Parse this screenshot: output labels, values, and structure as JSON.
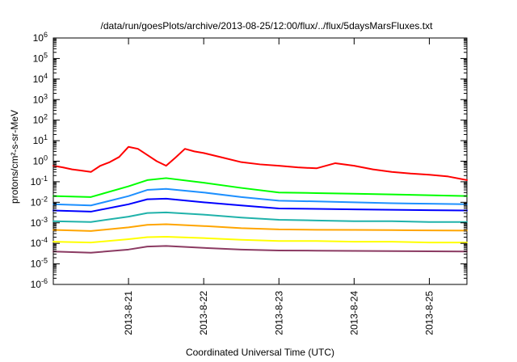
{
  "chart_data": {
    "type": "line",
    "title": "/data/run/goesPlots/archive/2013-08-25/12:00/flux/../flux/5daysMarsFluxes.txt",
    "xlabel": "Coordinated Universal Time (UTC)",
    "ylabel": "protons/cm²-s-sr-MeV",
    "y_scale": "log",
    "ylim": [
      1e-06,
      1000000.0
    ],
    "y_ticks": [
      {
        "value": 1e-06,
        "base": "10",
        "exp": "-6"
      },
      {
        "value": 1e-05,
        "base": "10",
        "exp": "-5"
      },
      {
        "value": 0.0001,
        "base": "10",
        "exp": "-4"
      },
      {
        "value": 0.001,
        "base": "10",
        "exp": "-3"
      },
      {
        "value": 0.01,
        "base": "10",
        "exp": "-2"
      },
      {
        "value": 0.1,
        "base": "10",
        "exp": "-1"
      },
      {
        "value": 1,
        "base": "10",
        "exp": "0"
      },
      {
        "value": 10,
        "base": "10",
        "exp": "1"
      },
      {
        "value": 100,
        "base": "10",
        "exp": "2"
      },
      {
        "value": 1000,
        "base": "10",
        "exp": "3"
      },
      {
        "value": 10000,
        "base": "10",
        "exp": "4"
      },
      {
        "value": 100000,
        "base": "10",
        "exp": "5"
      },
      {
        "value": 1000000,
        "base": "10",
        "exp": "6"
      }
    ],
    "x_range": [
      "2013-08-20T00:00:00Z",
      "2013-08-25T12:00:00Z"
    ],
    "x_ticks": [
      {
        "date": "2013-08-21T00:00:00Z",
        "label": "2013-8-21"
      },
      {
        "date": "2013-08-22T00:00:00Z",
        "label": "2013-8-22"
      },
      {
        "date": "2013-08-23T00:00:00Z",
        "label": "2013-8-23"
      },
      {
        "date": "2013-08-24T00:00:00Z",
        "label": "2013-8-24"
      },
      {
        "date": "2013-08-25T00:00:00Z",
        "label": "2013-8-25"
      }
    ],
    "series": [
      {
        "color": "#ff0000",
        "points": [
          [
            "2013-08-20T00:00:00Z",
            0.6
          ],
          [
            "2013-08-20T03:00:00Z",
            0.5
          ],
          [
            "2013-08-20T06:00:00Z",
            0.4
          ],
          [
            "2013-08-20T09:00:00Z",
            0.35
          ],
          [
            "2013-08-20T12:00:00Z",
            0.3
          ],
          [
            "2013-08-20T15:00:00Z",
            0.6
          ],
          [
            "2013-08-20T18:00:00Z",
            0.9
          ],
          [
            "2013-08-20T21:00:00Z",
            1.6
          ],
          [
            "2013-08-21T00:00:00Z",
            5.0
          ],
          [
            "2013-08-21T03:00:00Z",
            4.0
          ],
          [
            "2013-08-21T06:00:00Z",
            2.0
          ],
          [
            "2013-08-21T09:00:00Z",
            1.0
          ],
          [
            "2013-08-21T12:00:00Z",
            0.6
          ],
          [
            "2013-08-21T15:00:00Z",
            1.5
          ],
          [
            "2013-08-21T18:00:00Z",
            4.0
          ],
          [
            "2013-08-21T21:00:00Z",
            3.0
          ],
          [
            "2013-08-22T00:00:00Z",
            2.5
          ],
          [
            "2013-08-22T06:00:00Z",
            1.5
          ],
          [
            "2013-08-22T12:00:00Z",
            0.9
          ],
          [
            "2013-08-22T18:00:00Z",
            0.7
          ],
          [
            "2013-08-23T00:00:00Z",
            0.6
          ],
          [
            "2013-08-23T06:00:00Z",
            0.5
          ],
          [
            "2013-08-23T12:00:00Z",
            0.45
          ],
          [
            "2013-08-23T18:00:00Z",
            0.8
          ],
          [
            "2013-08-24T00:00:00Z",
            0.6
          ],
          [
            "2013-08-24T06:00:00Z",
            0.4
          ],
          [
            "2013-08-24T12:00:00Z",
            0.3
          ],
          [
            "2013-08-24T18:00:00Z",
            0.25
          ],
          [
            "2013-08-25T00:00:00Z",
            0.22
          ],
          [
            "2013-08-25T06:00:00Z",
            0.18
          ],
          [
            "2013-08-25T12:00:00Z",
            0.12
          ]
        ]
      },
      {
        "color": "#00ff00",
        "points": [
          [
            "2013-08-20T00:00:00Z",
            0.02
          ],
          [
            "2013-08-20T12:00:00Z",
            0.018
          ],
          [
            "2013-08-21T00:00:00Z",
            0.06
          ],
          [
            "2013-08-21T06:00:00Z",
            0.12
          ],
          [
            "2013-08-21T12:00:00Z",
            0.15
          ],
          [
            "2013-08-22T00:00:00Z",
            0.09
          ],
          [
            "2013-08-22T12:00:00Z",
            0.05
          ],
          [
            "2013-08-23T00:00:00Z",
            0.03
          ],
          [
            "2013-08-23T12:00:00Z",
            0.028
          ],
          [
            "2013-08-24T00:00:00Z",
            0.026
          ],
          [
            "2013-08-24T12:00:00Z",
            0.024
          ],
          [
            "2013-08-25T00:00:00Z",
            0.022
          ],
          [
            "2013-08-25T12:00:00Z",
            0.02
          ]
        ]
      },
      {
        "color": "#1e90ff",
        "points": [
          [
            "2013-08-20T00:00:00Z",
            0.008
          ],
          [
            "2013-08-20T12:00:00Z",
            0.007
          ],
          [
            "2013-08-21T00:00:00Z",
            0.02
          ],
          [
            "2013-08-21T06:00:00Z",
            0.04
          ],
          [
            "2013-08-21T12:00:00Z",
            0.045
          ],
          [
            "2013-08-22T00:00:00Z",
            0.03
          ],
          [
            "2013-08-22T12:00:00Z",
            0.018
          ],
          [
            "2013-08-23T00:00:00Z",
            0.012
          ],
          [
            "2013-08-23T12:00:00Z",
            0.011
          ],
          [
            "2013-08-24T00:00:00Z",
            0.01
          ],
          [
            "2013-08-24T12:00:00Z",
            0.009
          ],
          [
            "2013-08-25T00:00:00Z",
            0.0085
          ],
          [
            "2013-08-25T12:00:00Z",
            0.008
          ]
        ]
      },
      {
        "color": "#0000ff",
        "points": [
          [
            "2013-08-20T00:00:00Z",
            0.004
          ],
          [
            "2013-08-20T12:00:00Z",
            0.0035
          ],
          [
            "2013-08-21T00:00:00Z",
            0.008
          ],
          [
            "2013-08-21T06:00:00Z",
            0.014
          ],
          [
            "2013-08-21T12:00:00Z",
            0.015
          ],
          [
            "2013-08-22T00:00:00Z",
            0.01
          ],
          [
            "2013-08-22T12:00:00Z",
            0.007
          ],
          [
            "2013-08-23T00:00:00Z",
            0.005
          ],
          [
            "2013-08-23T12:00:00Z",
            0.0048
          ],
          [
            "2013-08-24T00:00:00Z",
            0.0045
          ],
          [
            "2013-08-24T12:00:00Z",
            0.0043
          ],
          [
            "2013-08-25T00:00:00Z",
            0.0041
          ],
          [
            "2013-08-25T12:00:00Z",
            0.004
          ]
        ]
      },
      {
        "color": "#20b2aa",
        "points": [
          [
            "2013-08-20T00:00:00Z",
            0.0012
          ],
          [
            "2013-08-20T12:00:00Z",
            0.0011
          ],
          [
            "2013-08-21T00:00:00Z",
            0.002
          ],
          [
            "2013-08-21T06:00:00Z",
            0.003
          ],
          [
            "2013-08-21T12:00:00Z",
            0.0032
          ],
          [
            "2013-08-22T00:00:00Z",
            0.0025
          ],
          [
            "2013-08-22T12:00:00Z",
            0.0018
          ],
          [
            "2013-08-23T00:00:00Z",
            0.0014
          ],
          [
            "2013-08-23T12:00:00Z",
            0.0013
          ],
          [
            "2013-08-24T00:00:00Z",
            0.0012
          ],
          [
            "2013-08-24T12:00:00Z",
            0.0012
          ],
          [
            "2013-08-25T00:00:00Z",
            0.0011
          ],
          [
            "2013-08-25T12:00:00Z",
            0.0011
          ]
        ]
      },
      {
        "color": "#ffa500",
        "points": [
          [
            "2013-08-20T00:00:00Z",
            0.00045
          ],
          [
            "2013-08-20T12:00:00Z",
            0.0004
          ],
          [
            "2013-08-21T00:00:00Z",
            0.0006
          ],
          [
            "2013-08-21T06:00:00Z",
            0.0008
          ],
          [
            "2013-08-21T12:00:00Z",
            0.00085
          ],
          [
            "2013-08-22T00:00:00Z",
            0.0007
          ],
          [
            "2013-08-22T12:00:00Z",
            0.00055
          ],
          [
            "2013-08-23T00:00:00Z",
            0.00048
          ],
          [
            "2013-08-23T12:00:00Z",
            0.00046
          ],
          [
            "2013-08-24T00:00:00Z",
            0.00045
          ],
          [
            "2013-08-24T12:00:00Z",
            0.00044
          ],
          [
            "2013-08-25T00:00:00Z",
            0.00043
          ],
          [
            "2013-08-25T12:00:00Z",
            0.00042
          ]
        ]
      },
      {
        "color": "#ffff00",
        "points": [
          [
            "2013-08-20T00:00:00Z",
            0.00012
          ],
          [
            "2013-08-20T12:00:00Z",
            0.00011
          ],
          [
            "2013-08-21T00:00:00Z",
            0.00016
          ],
          [
            "2013-08-21T06:00:00Z",
            0.0002
          ],
          [
            "2013-08-21T12:00:00Z",
            0.00021
          ],
          [
            "2013-08-22T00:00:00Z",
            0.00018
          ],
          [
            "2013-08-22T12:00:00Z",
            0.00015
          ],
          [
            "2013-08-23T00:00:00Z",
            0.00013
          ],
          [
            "2013-08-23T12:00:00Z",
            0.00013
          ],
          [
            "2013-08-24T00:00:00Z",
            0.00012
          ],
          [
            "2013-08-24T12:00:00Z",
            0.00012
          ],
          [
            "2013-08-25T00:00:00Z",
            0.00011
          ],
          [
            "2013-08-25T12:00:00Z",
            0.00011
          ]
        ]
      },
      {
        "color": "#8b3a62",
        "points": [
          [
            "2013-08-20T00:00:00Z",
            4e-05
          ],
          [
            "2013-08-20T12:00:00Z",
            3.5e-05
          ],
          [
            "2013-08-21T00:00:00Z",
            5e-05
          ],
          [
            "2013-08-21T06:00:00Z",
            7e-05
          ],
          [
            "2013-08-21T12:00:00Z",
            7.5e-05
          ],
          [
            "2013-08-22T00:00:00Z",
            6e-05
          ],
          [
            "2013-08-22T12:00:00Z",
            5e-05
          ],
          [
            "2013-08-23T00:00:00Z",
            4.5e-05
          ],
          [
            "2013-08-23T12:00:00Z",
            4.4e-05
          ],
          [
            "2013-08-24T00:00:00Z",
            4.3e-05
          ],
          [
            "2013-08-24T12:00:00Z",
            4.2e-05
          ],
          [
            "2013-08-25T00:00:00Z",
            4.1e-05
          ],
          [
            "2013-08-25T12:00:00Z",
            4e-05
          ]
        ]
      }
    ]
  }
}
